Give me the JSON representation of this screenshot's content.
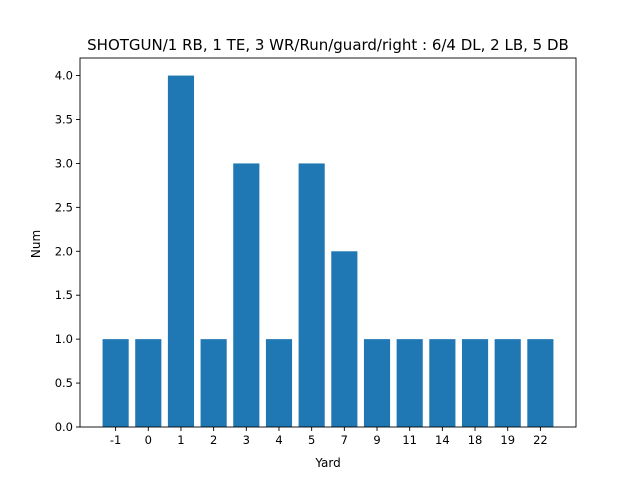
{
  "chart_data": {
    "type": "bar",
    "title": "SHOTGUN/1 RB, 1 TE, 3 WR/Run/guard/right : 6/4 DL, 2 LB, 5 DB",
    "xlabel": "Yard",
    "ylabel": "Num",
    "categories": [
      "-1",
      "0",
      "1",
      "2",
      "3",
      "4",
      "5",
      "7",
      "9",
      "11",
      "14",
      "18",
      "19",
      "22"
    ],
    "values": [
      1,
      1,
      4,
      1,
      3,
      1,
      3,
      2,
      1,
      1,
      1,
      1,
      1,
      1
    ],
    "ylim": [
      0,
      4.2
    ],
    "yticks": [
      "0.0",
      "0.5",
      "1.0",
      "1.5",
      "2.0",
      "2.5",
      "3.0",
      "3.5",
      "4.0"
    ],
    "bar_color": "#1f77b4",
    "grid": false,
    "legend": "none"
  }
}
